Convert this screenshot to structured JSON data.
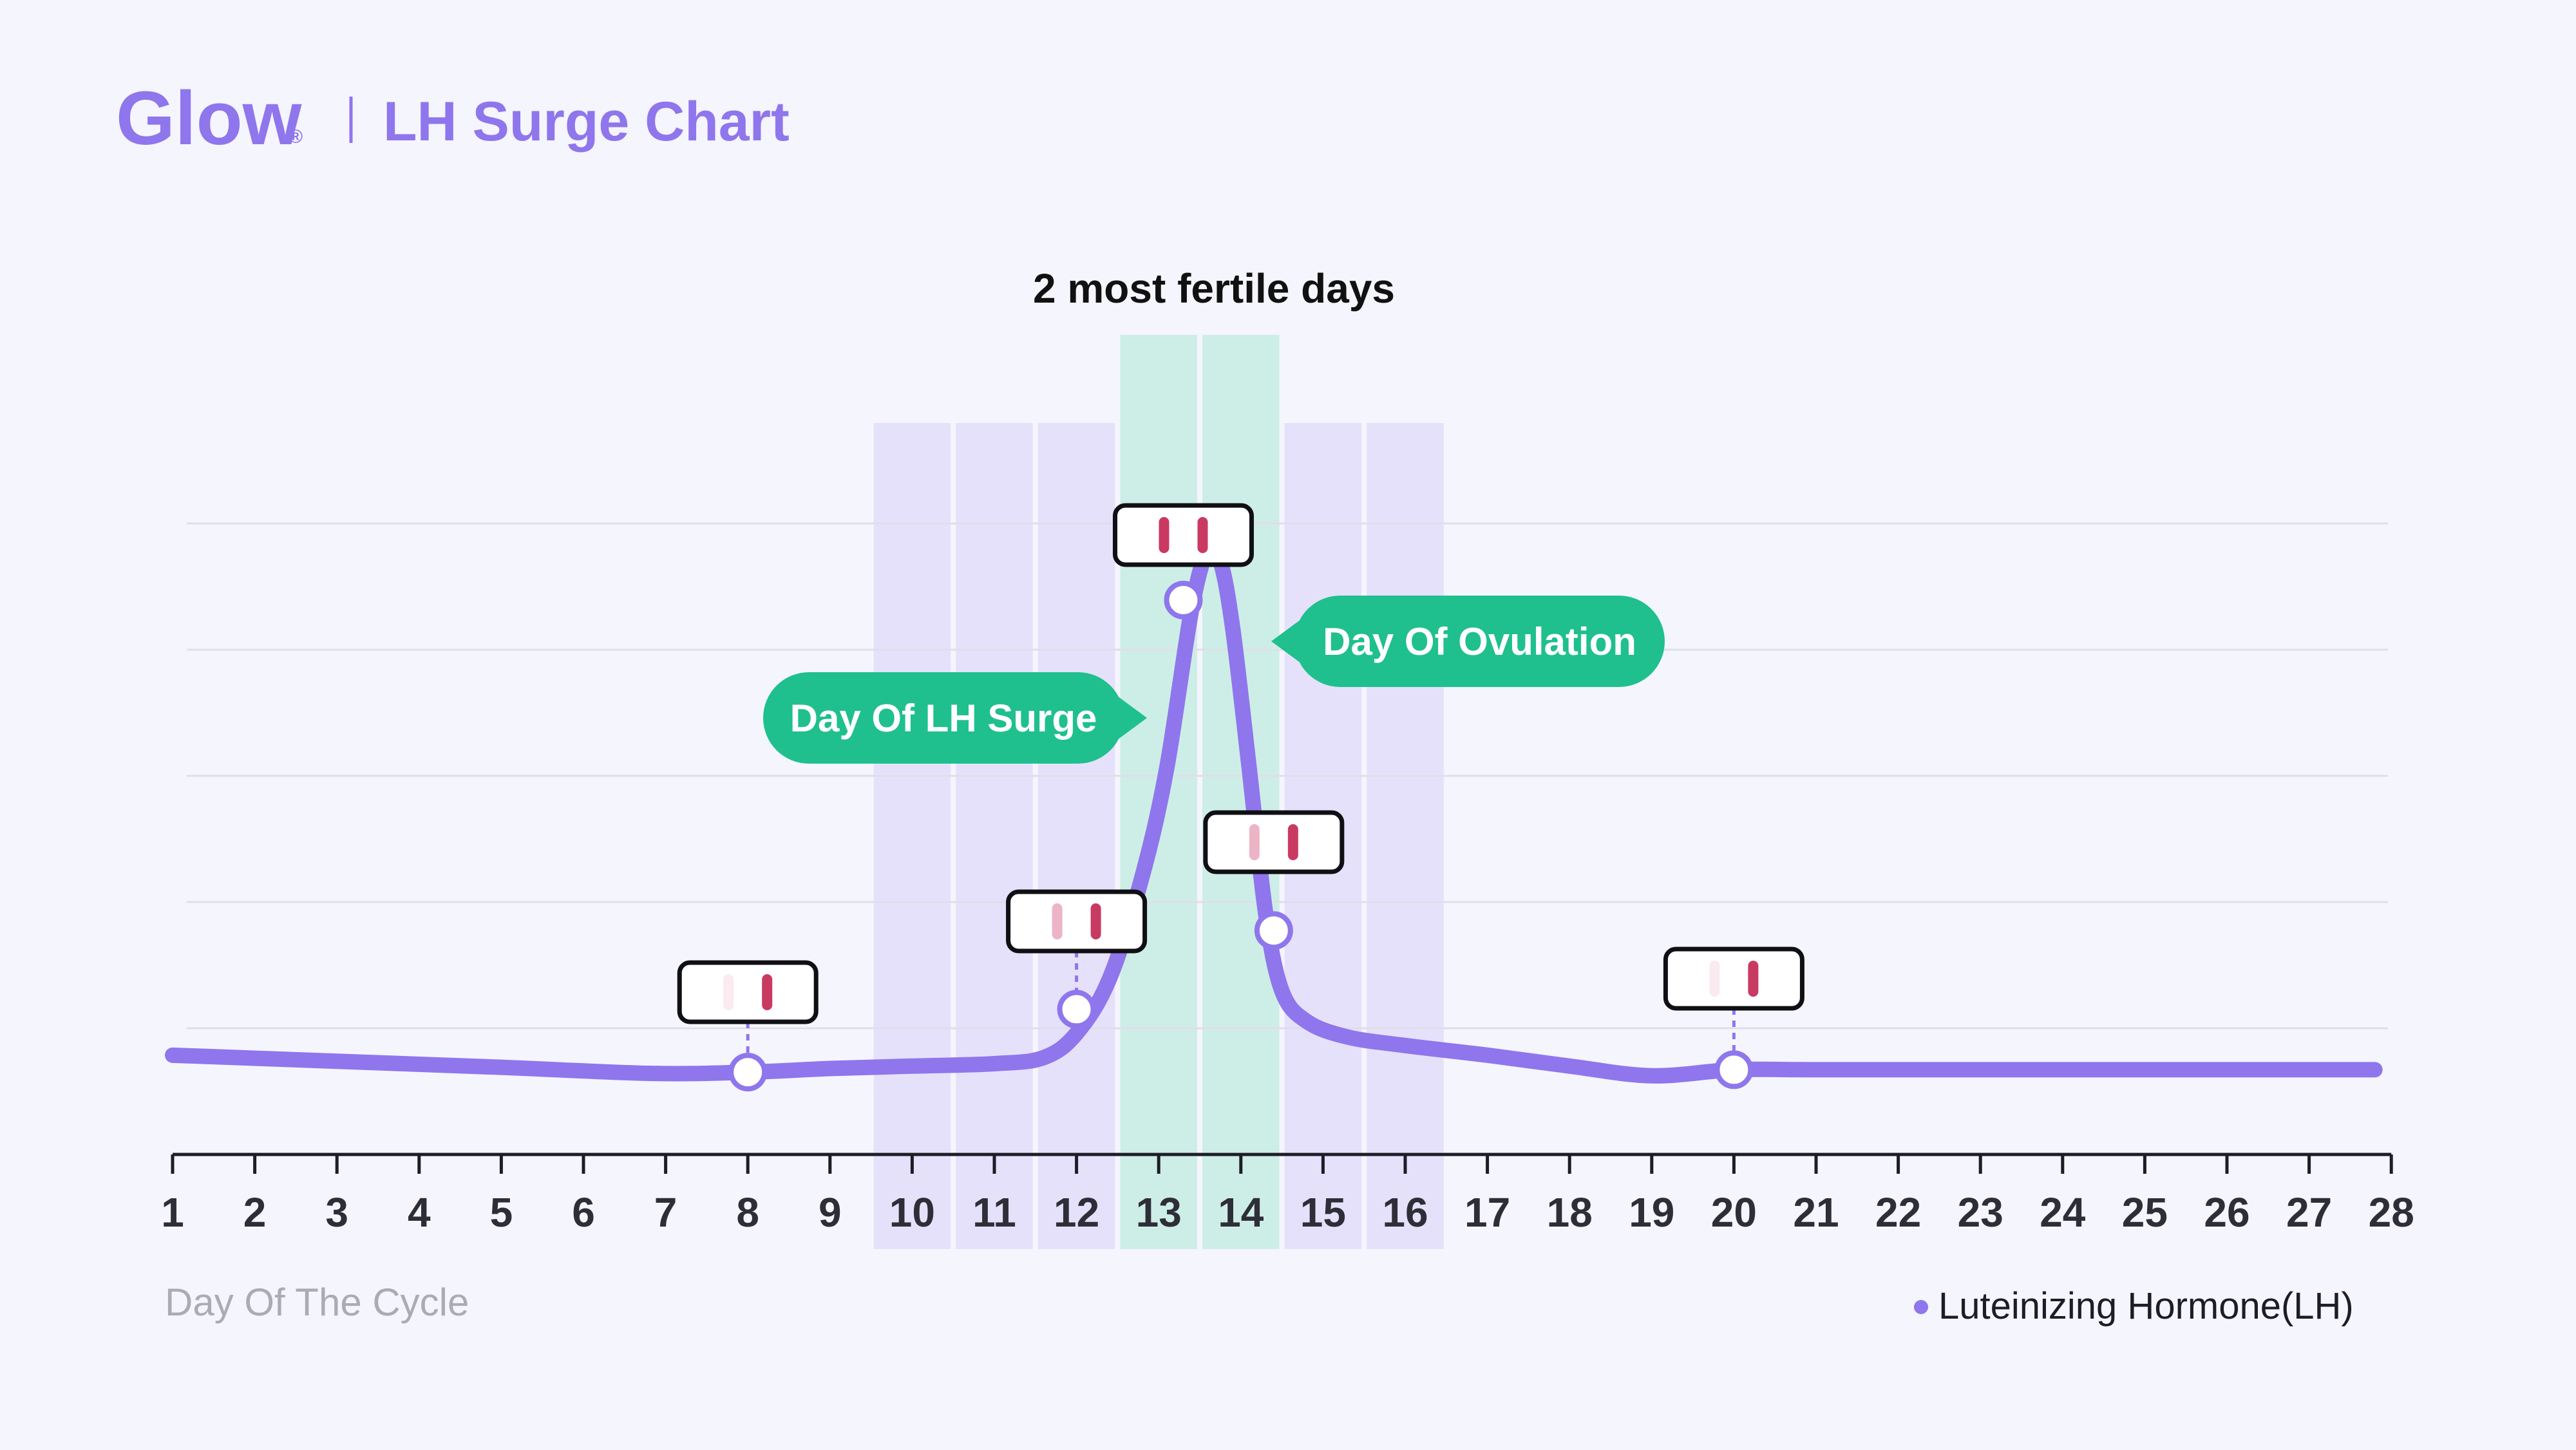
{
  "header": {
    "brand": "Glow",
    "brand_mark": "®",
    "title": "LH Surge Chart"
  },
  "colors": {
    "background": "#F5F5FE",
    "brand": "#8F76EC",
    "line": "#8F76EC",
    "fertile_window": "#E6E1FB",
    "fertile_peak": "#CDEEE6",
    "callout": "#1FC08E",
    "gridline": "#DFDEEA",
    "test_line_dark": "#C93A63",
    "test_line_light": "#EDB4C6",
    "test_line_faint": "#FBEAF0",
    "axis_label": "#ABABB3",
    "tick_label": "#2E2E38"
  },
  "chart_data": {
    "type": "line",
    "title": "2 most fertile days",
    "xlabel": "Day Of The Cycle",
    "ylabel": "",
    "x_ticks": [
      "1",
      "2",
      "3",
      "4",
      "5",
      "6",
      "7",
      "8",
      "9",
      "10",
      "11",
      "12",
      "13",
      "14",
      "15",
      "16",
      "17",
      "18",
      "19",
      "20",
      "21",
      "22",
      "23",
      "24",
      "25",
      "26",
      "27",
      "28"
    ],
    "xlim": [
      1,
      28
    ],
    "ylim": [
      0,
      5.2
    ],
    "grid": true,
    "legend": "bottom-right",
    "fertile_window_days": [
      10,
      11,
      12,
      15,
      16
    ],
    "most_fertile_days": [
      13,
      14
    ],
    "series": [
      {
        "name": "Luteinizing Hormone(LH)",
        "x": [
          1,
          3,
          5,
          6.8,
          8,
          9,
          10,
          11,
          11.6,
          12,
          12.4,
          12.8,
          13.1,
          13.4,
          13.6,
          13.75,
          13.9,
          14.1,
          14.3,
          14.5,
          14.8,
          15.3,
          16,
          17,
          18,
          19,
          20,
          21,
          23,
          25,
          27.8
        ],
        "values": [
          0.82,
          0.77,
          0.72,
          0.67,
          0.68,
          0.71,
          0.73,
          0.75,
          0.8,
          1.0,
          1.45,
          2.3,
          3.2,
          4.5,
          5.0,
          4.9,
          4.35,
          3.2,
          2.0,
          1.35,
          1.1,
          0.97,
          0.9,
          0.82,
          0.73,
          0.65,
          0.7,
          0.7,
          0.7,
          0.7,
          0.7
        ]
      }
    ],
    "test_points": [
      {
        "day": 8,
        "value": 0.68,
        "strip": [
          "faint",
          "dark"
        ]
      },
      {
        "day": 12,
        "value": 1.2,
        "strip": [
          "light",
          "dark"
        ]
      },
      {
        "day": 13.3,
        "value": 4.58,
        "strip": [
          "dark",
          "dark"
        ]
      },
      {
        "day": 14.4,
        "value": 1.85,
        "strip": [
          "light",
          "dark"
        ]
      },
      {
        "day": 20,
        "value": 0.7,
        "strip": [
          "faint",
          "dark"
        ]
      }
    ],
    "annotations": [
      {
        "text": "Day Of LH Surge",
        "target_day": 13
      },
      {
        "text": "Day Of Ovulation",
        "target_day": 14
      }
    ]
  },
  "icons": {
    "legend_marker": "dot-icon",
    "test_strip": "test-strip-icon",
    "callout_pointer": "triangle-pointer-icon"
  }
}
